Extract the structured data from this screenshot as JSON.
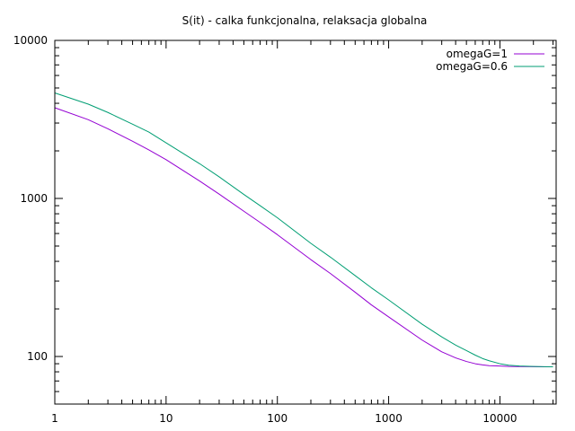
{
  "chart_data": {
    "type": "line",
    "title": "S(it) - calka funkcjonalna, relaksacja globalna",
    "xlabel": "",
    "ylabel": "",
    "x_scale": "log",
    "y_scale": "log",
    "xlim": [
      1,
      32000
    ],
    "ylim": [
      50,
      10000
    ],
    "x_ticks": [
      1,
      10,
      100,
      1000,
      10000
    ],
    "x_tick_labels": [
      "1",
      "10",
      "100",
      "1000",
      "10000"
    ],
    "y_ticks": [
      100,
      1000,
      10000
    ],
    "y_tick_labels": [
      "100",
      "1000",
      "10000"
    ],
    "grid": false,
    "legend_position": "top-right",
    "series": [
      {
        "name": "omegaG=1",
        "color": "#9400d3",
        "x": [
          1,
          2,
          3,
          5,
          7,
          10,
          20,
          30,
          50,
          70,
          100,
          200,
          300,
          500,
          700,
          1000,
          2000,
          3000,
          4000,
          5000,
          6000,
          7000,
          8000,
          10000,
          12000,
          15000,
          20000,
          25000,
          30000
        ],
        "y": [
          3750,
          3150,
          2760,
          2300,
          2030,
          1760,
          1290,
          1065,
          830,
          705,
          590,
          410,
          335,
          255,
          212,
          178,
          127,
          107,
          98,
          93,
          90,
          88.5,
          87.5,
          87,
          86.5,
          86.3,
          86.2,
          86.1,
          86
        ]
      },
      {
        "name": "omegaG=0.6",
        "color": "#009e73",
        "x": [
          1,
          2,
          3,
          5,
          7,
          10,
          20,
          30,
          50,
          70,
          100,
          200,
          300,
          500,
          700,
          1000,
          2000,
          3000,
          4000,
          5000,
          6000,
          7000,
          8000,
          10000,
          12000,
          15000,
          20000,
          25000,
          30000
        ],
        "y": [
          4650,
          3950,
          3500,
          2950,
          2630,
          2250,
          1660,
          1370,
          1060,
          900,
          755,
          520,
          425,
          325,
          272,
          228,
          160,
          133,
          118,
          109,
          102,
          97,
          94,
          90,
          88,
          87,
          86.5,
          86.2,
          86
        ]
      }
    ]
  }
}
